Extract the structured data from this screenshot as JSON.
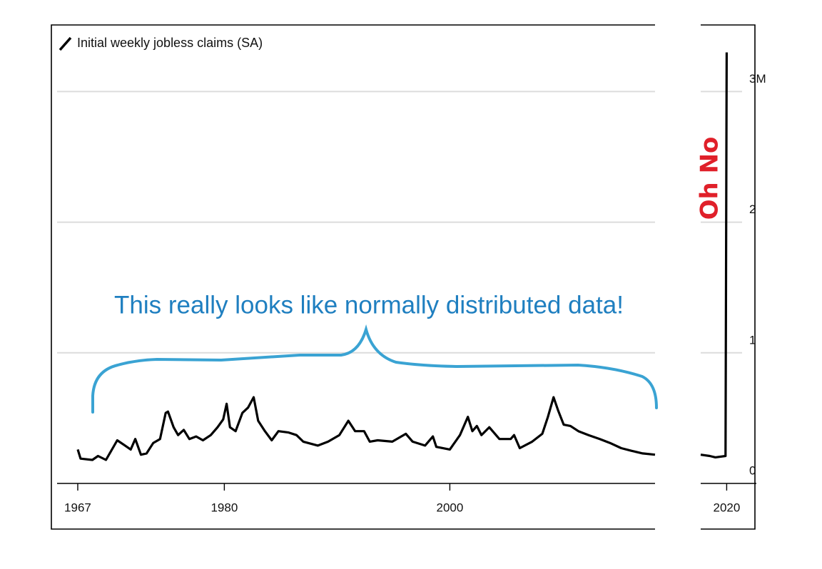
{
  "chart_data": [
    {
      "type": "line",
      "annotations": [
        "This really looks like normally distributed data!"
      ],
      "xlim": [
        1964.66,
        2018.2
      ],
      "xticks": [
        1967,
        1980,
        2000
      ],
      "ylim": [
        0,
        3.51
      ],
      "yticks": [
        0,
        1,
        2,
        3
      ],
      "grid": true,
      "series": [
        {
          "name": "Initial weekly jobless claims (SA)",
          "color": "#000000",
          "x": [
            1967.0,
            1967.25,
            1968.3,
            1968.8,
            1969.5,
            1970.1,
            1970.5,
            1971.2,
            1971.7,
            1972.1,
            1972.6,
            1973.1,
            1973.7,
            1974.3,
            1974.8,
            1975.0,
            1975.5,
            1975.9,
            1976.4,
            1976.9,
            1977.5,
            1978.1,
            1978.8,
            1979.4,
            1979.9,
            1980.2,
            1980.5,
            1981.0,
            1981.6,
            1982.1,
            1982.6,
            1983.0,
            1983.6,
            1984.2,
            1984.8,
            1985.7,
            1986.4,
            1987.0,
            1988.3,
            1989.2,
            1990.2,
            1991.0,
            1991.6,
            1992.4,
            1992.9,
            1993.6,
            1994.9,
            1996.1,
            1996.7,
            1997.8,
            1998.5,
            1998.8,
            2000.0,
            2000.9,
            2001.6,
            2002.0,
            2002.4,
            2002.8,
            2003.5,
            2004.4,
            2005.4,
            2005.7,
            2006.2,
            2007.3,
            2008.2,
            2008.7,
            2009.2,
            2009.6,
            2010.1,
            2010.7,
            2011.4,
            2012.3,
            2013.3,
            2014.2,
            2015.2,
            2016.1,
            2017.1,
            2018.2
          ],
          "values": [
            0.26,
            0.19,
            0.18,
            0.21,
            0.18,
            0.27,
            0.33,
            0.29,
            0.26,
            0.34,
            0.22,
            0.23,
            0.31,
            0.34,
            0.54,
            0.55,
            0.43,
            0.37,
            0.41,
            0.34,
            0.36,
            0.33,
            0.37,
            0.43,
            0.49,
            0.61,
            0.43,
            0.4,
            0.54,
            0.58,
            0.66,
            0.48,
            0.4,
            0.33,
            0.4,
            0.39,
            0.37,
            0.32,
            0.29,
            0.32,
            0.37,
            0.48,
            0.4,
            0.4,
            0.32,
            0.33,
            0.32,
            0.38,
            0.32,
            0.29,
            0.36,
            0.28,
            0.26,
            0.37,
            0.51,
            0.4,
            0.44,
            0.37,
            0.43,
            0.34,
            0.34,
            0.37,
            0.27,
            0.32,
            0.38,
            0.51,
            0.66,
            0.56,
            0.45,
            0.44,
            0.4,
            0.37,
            0.34,
            0.31,
            0.27,
            0.25,
            0.23,
            0.22
          ]
        }
      ]
    },
    {
      "type": "line",
      "annotations": [
        "Oh No"
      ],
      "xlim": [
        2017.7,
        2022.5
      ],
      "xticks": [
        2020
      ],
      "ylim": [
        0,
        3.51
      ],
      "yticks": [
        0,
        1,
        2,
        {
          "value": 3,
          "label": "3M"
        }
      ],
      "grid": true,
      "series": [
        {
          "color": "#000000",
          "x": [
            2017.7,
            2018.5,
            2019.0,
            2019.9,
            2020.0
          ],
          "values": [
            0.22,
            0.21,
            0.2,
            0.21,
            3.3
          ]
        }
      ]
    }
  ]
}
